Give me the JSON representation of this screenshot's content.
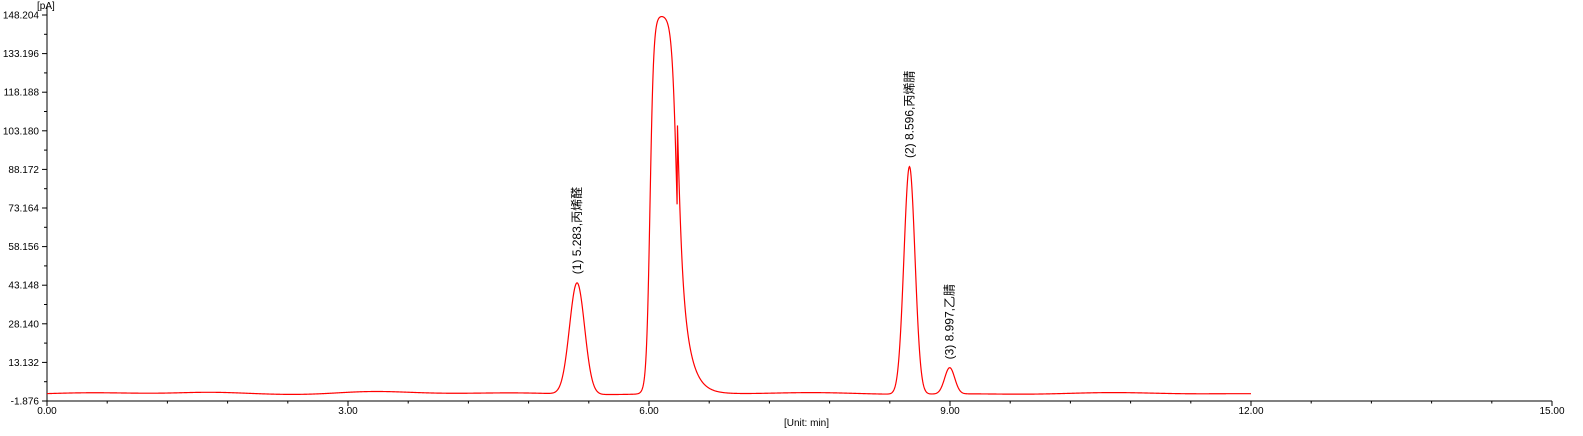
{
  "chart_data": {
    "type": "line",
    "y_unit_label": "[pA]",
    "x_unit_label": "[Unit: min]",
    "xlim": [
      0,
      15
    ],
    "ylim": [
      -1.876,
      148.204
    ],
    "x_ticks": [
      "0.00",
      "3.00",
      "6.00",
      "9.00",
      "12.00",
      "15.00"
    ],
    "y_ticks": [
      "-1.876",
      "13.132",
      "28.140",
      "43.148",
      "58.156",
      "73.164",
      "88.172",
      "103.180",
      "118.188",
      "133.196",
      "148.204"
    ],
    "grid": false,
    "series_color": "#ff0000",
    "baseline": 1.0,
    "trace_end_min": 12.0,
    "peaks": [
      {
        "rt": 5.283,
        "height": 44.3,
        "label": "(1) 5.283,丙烯醛"
      },
      {
        "rt": 6.15,
        "height": 148.2,
        "label": ""
      },
      {
        "rt": 8.596,
        "height": 89.5,
        "label": "(2) 8.596,丙烯腈"
      },
      {
        "rt": 8.997,
        "height": 11.2,
        "label": "(3) 8.997,乙腈"
      }
    ]
  }
}
